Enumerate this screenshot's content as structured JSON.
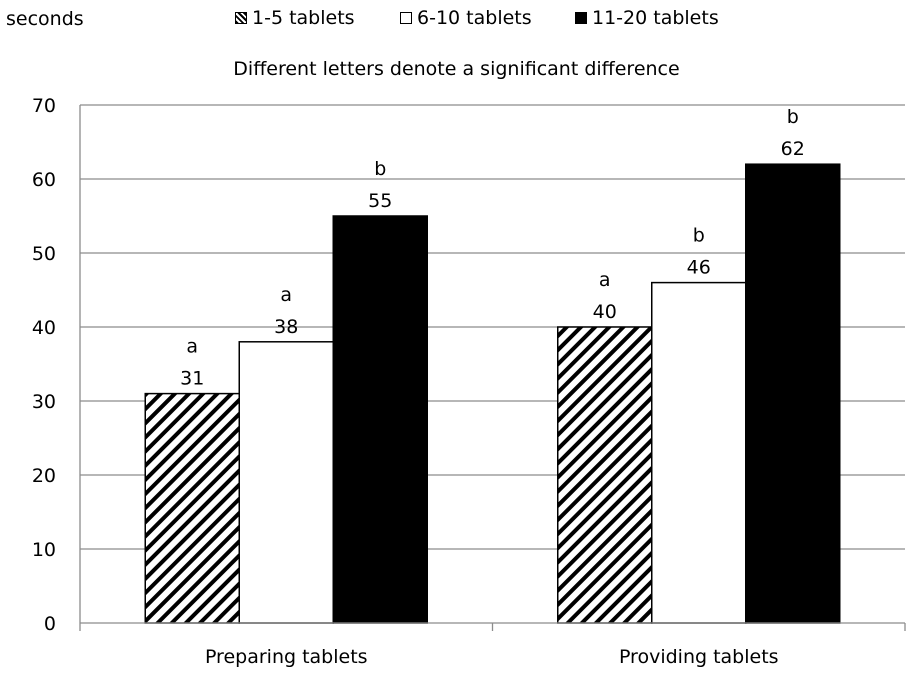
{
  "chart_data": {
    "type": "bar",
    "title": "Different letters denote a significant difference",
    "ylabel": "seconds",
    "xlabel": "",
    "categories": [
      "Preparing tablets",
      "Providing tablets"
    ],
    "series": [
      {
        "name": "1-5 tablets",
        "values": [
          31,
          40
        ],
        "letters": [
          "a",
          "a"
        ],
        "fill": "hatch"
      },
      {
        "name": "6-10 tablets",
        "values": [
          38,
          46
        ],
        "letters": [
          "a",
          "b"
        ],
        "fill": "#ffffff"
      },
      {
        "name": "11-20 tablets",
        "values": [
          55,
          62
        ],
        "letters": [
          "b",
          "b"
        ],
        "fill": "#000000"
      }
    ],
    "ylim": [
      0,
      70
    ],
    "yticks": [
      0,
      10,
      20,
      30,
      40,
      50,
      60,
      70
    ],
    "grid": true,
    "legend": "top"
  }
}
